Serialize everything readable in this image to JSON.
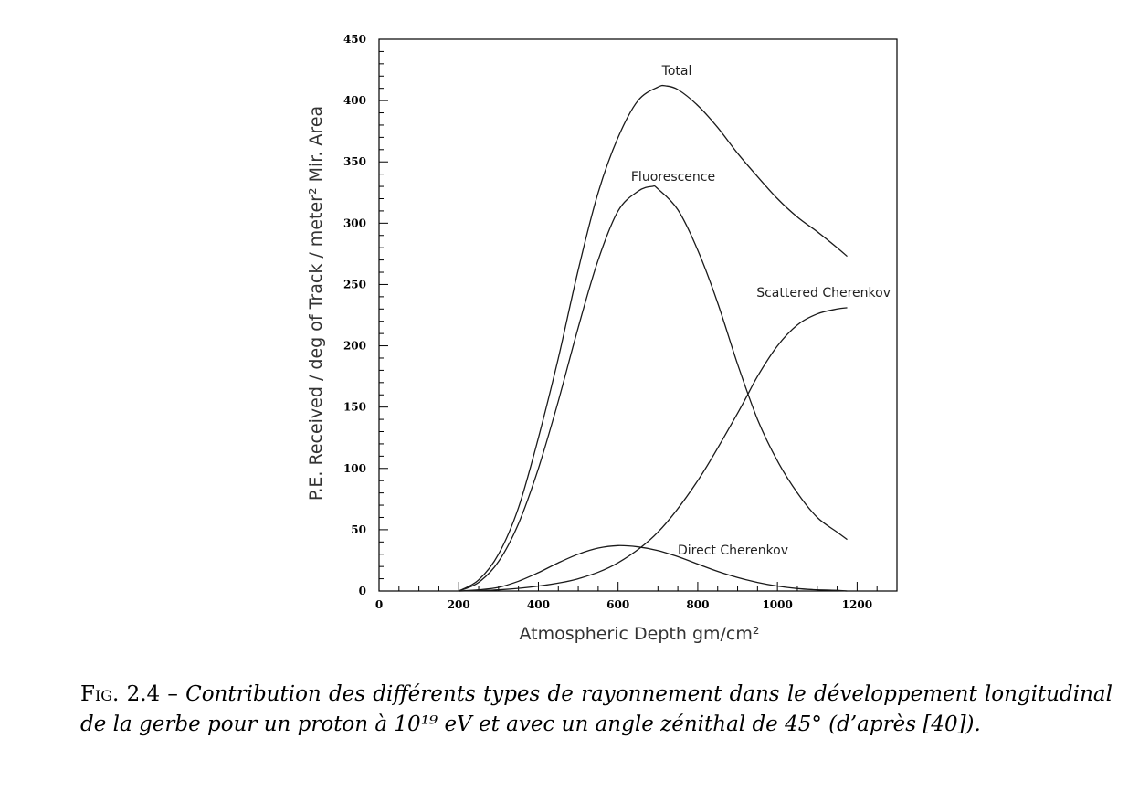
{
  "chart_data": {
    "type": "line",
    "title": "",
    "xlabel": "Atmospheric Depth gm/cm²",
    "ylabel": "P.E. Received / deg of Track / meter² Mir. Area",
    "xlim": [
      0,
      1300
    ],
    "ylim": [
      0,
      450
    ],
    "xticks": [
      0,
      200,
      400,
      600,
      800,
      1000,
      1200
    ],
    "yticks": [
      0,
      50,
      100,
      150,
      200,
      250,
      300,
      350,
      400,
      450
    ],
    "grid": false,
    "legend": "none",
    "series": [
      {
        "name": "Total",
        "x": [
          200,
          250,
          300,
          350,
          400,
          450,
          500,
          550,
          600,
          650,
          700,
          720,
          750,
          800,
          850,
          900,
          950,
          1000,
          1050,
          1100,
          1150,
          1175
        ],
        "y": [
          0,
          9,
          30,
          68,
          125,
          190,
          262,
          325,
          370,
          400,
          411,
          412,
          409,
          396,
          378,
          357,
          338,
          320,
          305,
          293,
          280,
          273
        ]
      },
      {
        "name": "Fluorescence",
        "x": [
          200,
          250,
          300,
          350,
          400,
          450,
          500,
          550,
          600,
          650,
          685,
          700,
          750,
          800,
          850,
          900,
          950,
          1000,
          1050,
          1100,
          1150,
          1175
        ],
        "y": [
          0,
          7,
          24,
          55,
          100,
          155,
          215,
          270,
          310,
          326,
          330,
          328,
          311,
          278,
          235,
          185,
          140,
          106,
          80,
          60,
          48,
          42
        ]
      },
      {
        "name": "Scattered Cherenkov",
        "x": [
          200,
          300,
          400,
          500,
          600,
          700,
          800,
          900,
          950,
          1000,
          1050,
          1100,
          1150,
          1175
        ],
        "y": [
          0,
          1,
          4,
          10,
          23,
          48,
          90,
          145,
          175,
          200,
          217,
          226,
          230,
          231
        ]
      },
      {
        "name": "Direct Cherenkov",
        "x": [
          200,
          250,
          300,
          350,
          400,
          450,
          500,
          550,
          600,
          650,
          700,
          750,
          800,
          850,
          900,
          950,
          1000,
          1050,
          1100,
          1150,
          1175
        ],
        "y": [
          0,
          1,
          3,
          8,
          15,
          23,
          30,
          35,
          37,
          36,
          33,
          28,
          22,
          16,
          11,
          7,
          4,
          2,
          1,
          0.5,
          0
        ]
      }
    ]
  },
  "caption": {
    "prefix": "Fig. 2.4 – ",
    "text": "Contribution des différents types de rayonnement dans le développement longitudinal de la gerbe pour un proton à 10¹⁹ eV et avec un angle zénithal de 45° (d’après [40])."
  }
}
